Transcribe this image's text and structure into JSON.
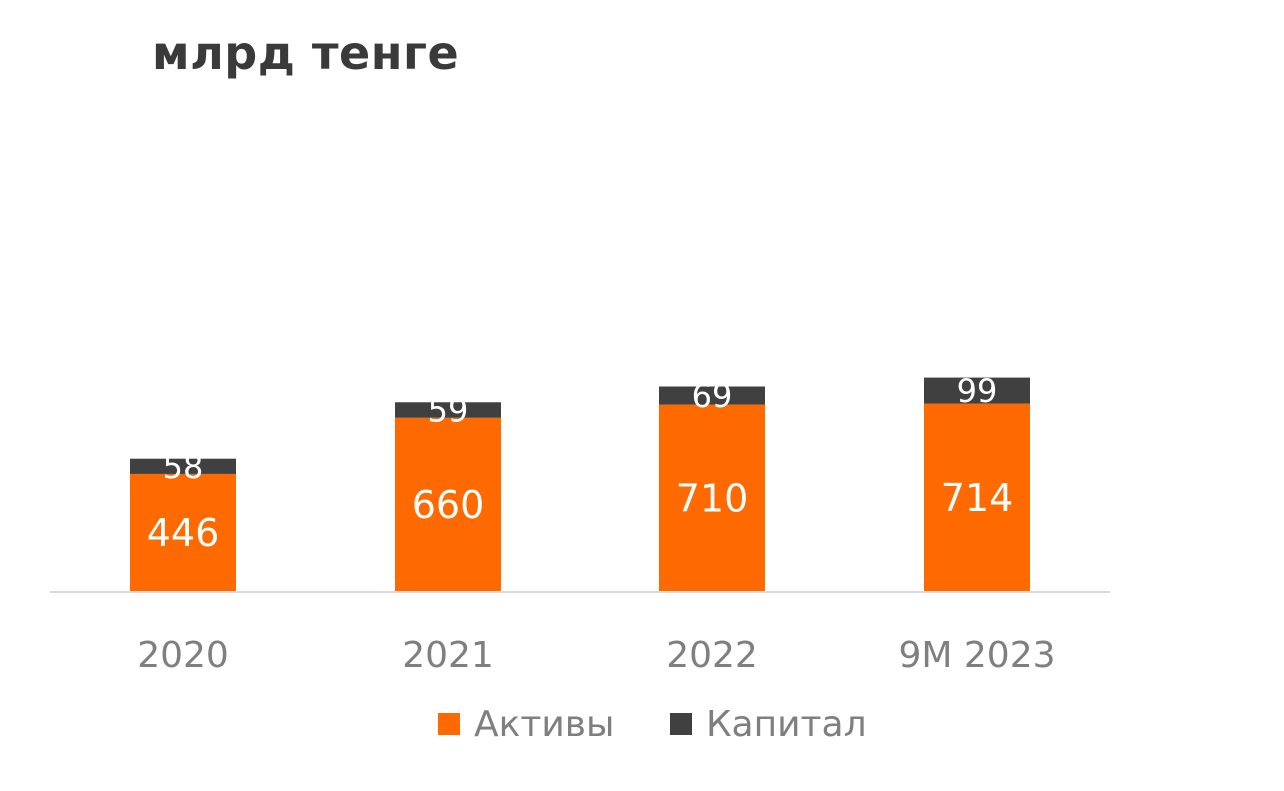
{
  "title": "млрд тенге",
  "chart_data": {
    "type": "bar",
    "stacked": true,
    "categories": [
      "2020",
      "2021",
      "2022",
      "9M 2023"
    ],
    "series": [
      {
        "name": "Активы",
        "values": [
          446,
          660,
          710,
          714
        ],
        "color": "#FF6A00",
        "label_color": "#FFFFFF"
      },
      {
        "name": "Капитал",
        "values": [
          58,
          59,
          69,
          99
        ],
        "color": "#404040",
        "label_color": "#FFFFFF"
      }
    ],
    "title": "млрд тенге",
    "xlabel": "",
    "ylabel": "",
    "ylim": [
      0,
      800
    ],
    "grid": false,
    "legend": "bottom-center",
    "axis_color": "#D9D9D9",
    "tick_label_color": "#7F7F7F"
  }
}
